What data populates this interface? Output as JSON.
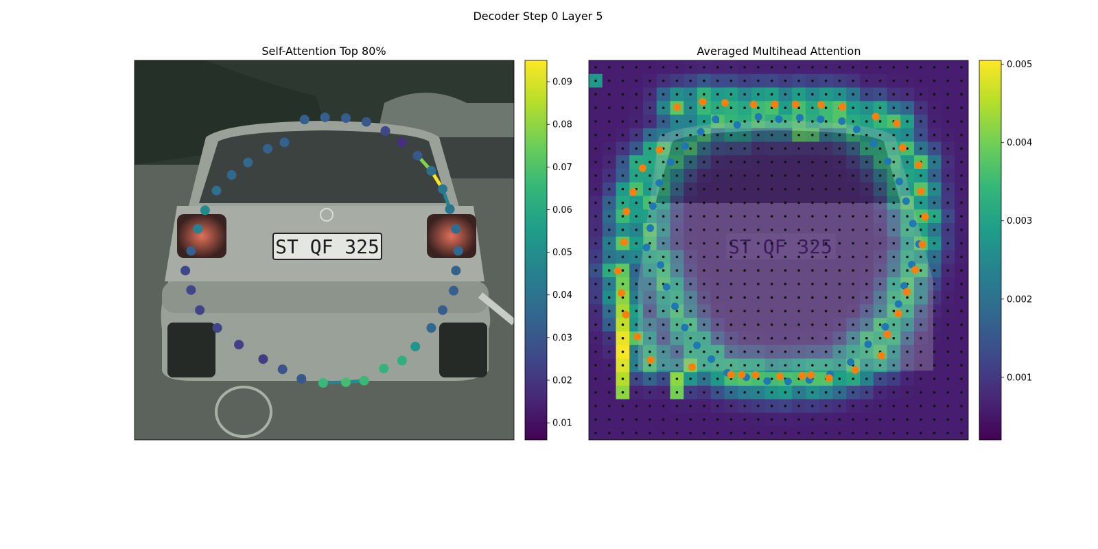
{
  "figure": {
    "suptitle": "Decoder Step 0 Layer 5"
  },
  "colormap": {
    "name": "viridis",
    "stops": [
      "#440154",
      "#482878",
      "#3e4a89",
      "#31688e",
      "#26828e",
      "#1f9e89",
      "#35b779",
      "#6ece58",
      "#b5de2b",
      "#fde725"
    ]
  },
  "background": {
    "description_colors": {
      "foliage": "#2f3a31",
      "road": "#5a625c",
      "car_body": "#9ea59c",
      "window": "#3b4240"
    },
    "plate_text": "ST QF 325"
  },
  "chart_data": [
    {
      "type": "scatter",
      "title": "Self-Attention Top 80%",
      "xlim": [
        0,
        1
      ],
      "ylim": [
        0,
        1
      ],
      "colorbar": {
        "min": 0.006,
        "max": 0.095,
        "ticks": [
          0.01,
          0.02,
          0.03,
          0.04,
          0.05,
          0.06,
          0.07,
          0.08,
          0.09
        ]
      },
      "polygon": [
        {
          "x": 0.502,
          "y": 0.85,
          "v": 0.033
        },
        {
          "x": 0.557,
          "y": 0.848,
          "v": 0.032
        },
        {
          "x": 0.611,
          "y": 0.838,
          "v": 0.03
        },
        {
          "x": 0.661,
          "y": 0.814,
          "v": 0.025
        },
        {
          "x": 0.705,
          "y": 0.784,
          "v": 0.018
        },
        {
          "x": 0.746,
          "y": 0.749,
          "v": 0.03
        },
        {
          "x": 0.782,
          "y": 0.709,
          "v": 0.038
        },
        {
          "x": 0.812,
          "y": 0.661,
          "v": 0.041
        },
        {
          "x": 0.831,
          "y": 0.608,
          "v": 0.04
        },
        {
          "x": 0.847,
          "y": 0.556,
          "v": 0.037
        },
        {
          "x": 0.853,
          "y": 0.498,
          "v": 0.036
        },
        {
          "x": 0.847,
          "y": 0.446,
          "v": 0.034
        },
        {
          "x": 0.841,
          "y": 0.393,
          "v": 0.033
        },
        {
          "x": 0.812,
          "y": 0.342,
          "v": 0.032
        },
        {
          "x": 0.782,
          "y": 0.295,
          "v": 0.036
        },
        {
          "x": 0.74,
          "y": 0.246,
          "v": 0.052
        },
        {
          "x": 0.705,
          "y": 0.209,
          "v": 0.062
        },
        {
          "x": 0.657,
          "y": 0.188,
          "v": 0.064
        },
        {
          "x": 0.605,
          "y": 0.156,
          "v": 0.066
        },
        {
          "x": 0.557,
          "y": 0.152,
          "v": 0.068
        },
        {
          "x": 0.497,
          "y": 0.15,
          "v": 0.066
        },
        {
          "x": 0.44,
          "y": 0.161,
          "v": 0.03
        },
        {
          "x": 0.39,
          "y": 0.186,
          "v": 0.029
        },
        {
          "x": 0.339,
          "y": 0.213,
          "v": 0.022
        },
        {
          "x": 0.275,
          "y": 0.251,
          "v": 0.023
        },
        {
          "x": 0.218,
          "y": 0.295,
          "v": 0.024
        },
        {
          "x": 0.172,
          "y": 0.342,
          "v": 0.024
        },
        {
          "x": 0.149,
          "y": 0.395,
          "v": 0.025
        },
        {
          "x": 0.134,
          "y": 0.446,
          "v": 0.025
        },
        {
          "x": 0.149,
          "y": 0.498,
          "v": 0.033
        },
        {
          "x": 0.167,
          "y": 0.556,
          "v": 0.045
        },
        {
          "x": 0.186,
          "y": 0.605,
          "v": 0.048
        },
        {
          "x": 0.216,
          "y": 0.657,
          "v": 0.039
        },
        {
          "x": 0.256,
          "y": 0.698,
          "v": 0.036
        },
        {
          "x": 0.299,
          "y": 0.731,
          "v": 0.036
        },
        {
          "x": 0.351,
          "y": 0.767,
          "v": 0.034
        },
        {
          "x": 0.395,
          "y": 0.784,
          "v": 0.034
        },
        {
          "x": 0.448,
          "y": 0.844,
          "v": 0.033
        }
      ],
      "highlight_edges": [
        {
          "from": 6,
          "to": 7,
          "v": 0.094
        },
        {
          "from": 5,
          "to": 6,
          "v": 0.078
        },
        {
          "from": 7,
          "to": 8,
          "v": 0.045
        },
        {
          "from": 18,
          "to": 19,
          "v": 0.05
        },
        {
          "from": 19,
          "to": 20,
          "v": 0.045
        }
      ]
    },
    {
      "type": "heatmap",
      "title": "Averaged Multihead Attention",
      "xlim": [
        0,
        1
      ],
      "ylim": [
        0,
        1
      ],
      "grid": [
        28,
        28
      ],
      "colorbar": {
        "min": 0.0002,
        "max": 0.00505,
        "ticks": [
          0.001,
          0.002,
          0.003,
          0.004,
          0.005
        ]
      },
      "reference_points_blue": [
        {
          "x": 0.447,
          "y": 0.851
        },
        {
          "x": 0.501,
          "y": 0.845
        },
        {
          "x": 0.556,
          "y": 0.849
        },
        {
          "x": 0.611,
          "y": 0.845
        },
        {
          "x": 0.667,
          "y": 0.84
        },
        {
          "x": 0.706,
          "y": 0.818
        },
        {
          "x": 0.75,
          "y": 0.781
        },
        {
          "x": 0.788,
          "y": 0.734
        },
        {
          "x": 0.818,
          "y": 0.681
        },
        {
          "x": 0.836,
          "y": 0.629
        },
        {
          "x": 0.854,
          "y": 0.57
        },
        {
          "x": 0.87,
          "y": 0.516
        },
        {
          "x": 0.851,
          "y": 0.462
        },
        {
          "x": 0.831,
          "y": 0.406
        },
        {
          "x": 0.816,
          "y": 0.358
        },
        {
          "x": 0.781,
          "y": 0.298
        },
        {
          "x": 0.736,
          "y": 0.252
        },
        {
          "x": 0.69,
          "y": 0.205
        },
        {
          "x": 0.636,
          "y": 0.173
        },
        {
          "x": 0.581,
          "y": 0.158
        },
        {
          "x": 0.525,
          "y": 0.154
        },
        {
          "x": 0.47,
          "y": 0.155
        },
        {
          "x": 0.415,
          "y": 0.165
        },
        {
          "x": 0.365,
          "y": 0.177
        },
        {
          "x": 0.323,
          "y": 0.213
        },
        {
          "x": 0.285,
          "y": 0.249
        },
        {
          "x": 0.253,
          "y": 0.296
        },
        {
          "x": 0.227,
          "y": 0.352
        },
        {
          "x": 0.205,
          "y": 0.403
        },
        {
          "x": 0.189,
          "y": 0.461
        },
        {
          "x": 0.152,
          "y": 0.507
        },
        {
          "x": 0.162,
          "y": 0.558
        },
        {
          "x": 0.169,
          "y": 0.616
        },
        {
          "x": 0.186,
          "y": 0.677
        },
        {
          "x": 0.216,
          "y": 0.732
        },
        {
          "x": 0.254,
          "y": 0.774
        },
        {
          "x": 0.295,
          "y": 0.812
        },
        {
          "x": 0.334,
          "y": 0.845
        },
        {
          "x": 0.391,
          "y": 0.83
        }
      ],
      "reference_points_orange": [
        {
          "x": 0.233,
          "y": 0.877
        },
        {
          "x": 0.3,
          "y": 0.891
        },
        {
          "x": 0.359,
          "y": 0.888
        },
        {
          "x": 0.434,
          "y": 0.884
        },
        {
          "x": 0.49,
          "y": 0.884
        },
        {
          "x": 0.545,
          "y": 0.884
        },
        {
          "x": 0.612,
          "y": 0.883
        },
        {
          "x": 0.668,
          "y": 0.878
        },
        {
          "x": 0.756,
          "y": 0.852
        },
        {
          "x": 0.812,
          "y": 0.834
        },
        {
          "x": 0.827,
          "y": 0.77
        },
        {
          "x": 0.869,
          "y": 0.725
        },
        {
          "x": 0.875,
          "y": 0.655
        },
        {
          "x": 0.886,
          "y": 0.588
        },
        {
          "x": 0.879,
          "y": 0.515
        },
        {
          "x": 0.86,
          "y": 0.448
        },
        {
          "x": 0.838,
          "y": 0.39
        },
        {
          "x": 0.816,
          "y": 0.333
        },
        {
          "x": 0.787,
          "y": 0.278
        },
        {
          "x": 0.771,
          "y": 0.222
        },
        {
          "x": 0.702,
          "y": 0.184
        },
        {
          "x": 0.633,
          "y": 0.163
        },
        {
          "x": 0.585,
          "y": 0.171
        },
        {
          "x": 0.562,
          "y": 0.169
        },
        {
          "x": 0.503,
          "y": 0.167
        },
        {
          "x": 0.44,
          "y": 0.171
        },
        {
          "x": 0.403,
          "y": 0.172
        },
        {
          "x": 0.375,
          "y": 0.172
        },
        {
          "x": 0.272,
          "y": 0.192
        },
        {
          "x": 0.163,
          "y": 0.211
        },
        {
          "x": 0.128,
          "y": 0.272
        },
        {
          "x": 0.098,
          "y": 0.33
        },
        {
          "x": 0.086,
          "y": 0.387
        },
        {
          "x": 0.076,
          "y": 0.445
        },
        {
          "x": 0.093,
          "y": 0.521
        },
        {
          "x": 0.099,
          "y": 0.602
        },
        {
          "x": 0.117,
          "y": 0.653
        },
        {
          "x": 0.142,
          "y": 0.716
        },
        {
          "x": 0.186,
          "y": 0.764
        }
      ],
      "hot_cells": [
        {
          "c": 2,
          "r": 24,
          "v": 0.0042
        },
        {
          "c": 2,
          "r": 23,
          "v": 0.0045
        },
        {
          "c": 2,
          "r": 22,
          "v": 0.0048
        },
        {
          "c": 2,
          "r": 21,
          "v": 0.005
        },
        {
          "c": 2,
          "r": 20,
          "v": 0.0049
        },
        {
          "c": 2,
          "r": 19,
          "v": 0.0046
        },
        {
          "c": 2,
          "r": 18,
          "v": 0.0044
        },
        {
          "c": 2,
          "r": 17,
          "v": 0.0042
        },
        {
          "c": 2,
          "r": 16,
          "v": 0.004
        },
        {
          "c": 2,
          "r": 15,
          "v": 0.0038
        },
        {
          "c": 6,
          "r": 23,
          "v": 0.0042
        },
        {
          "c": 6,
          "r": 24,
          "v": 0.004
        },
        {
          "c": 7,
          "r": 22,
          "v": 0.004
        },
        {
          "c": 15,
          "r": 5,
          "v": 0.0038
        },
        {
          "c": 16,
          "r": 5,
          "v": 0.0037
        },
        {
          "c": 7,
          "r": 6,
          "v": 0.0036
        },
        {
          "c": 0,
          "r": 1,
          "v": 0.0028
        }
      ]
    }
  ]
}
